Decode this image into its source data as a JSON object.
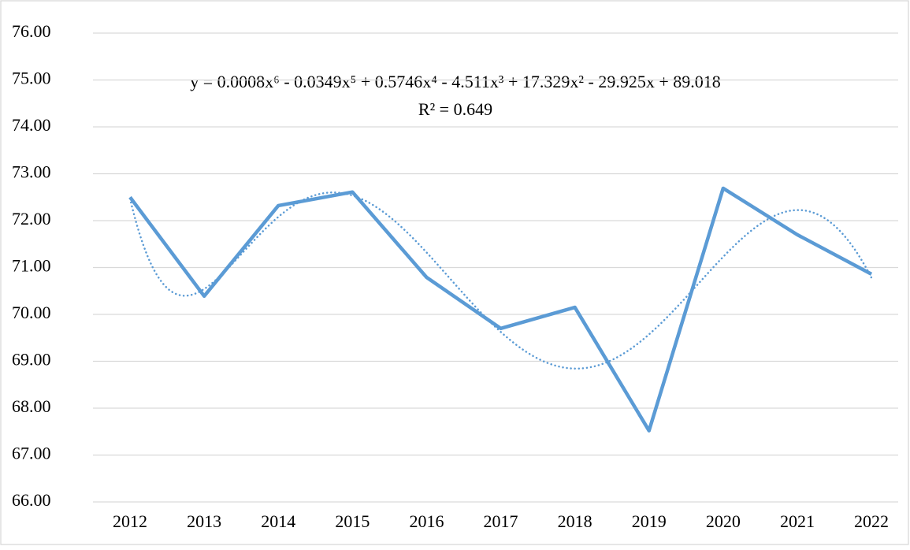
{
  "chart_data": {
    "type": "line",
    "categories": [
      "2012",
      "2013",
      "2014",
      "2015",
      "2016",
      "2017",
      "2018",
      "2019",
      "2020",
      "2021",
      "2022"
    ],
    "values": [
      72.5,
      70.39,
      72.32,
      72.61,
      70.79,
      69.7,
      70.15,
      67.52,
      72.69,
      71.7,
      70.86
    ],
    "color": "#5b9bd5",
    "ylim": [
      66,
      76
    ],
    "yticks": [
      {
        "value": 66,
        "label": "66.00"
      },
      {
        "value": 67,
        "label": "67.00"
      },
      {
        "value": 68,
        "label": "68.00"
      },
      {
        "value": 69,
        "label": "69.00"
      },
      {
        "value": 70,
        "label": "70.00"
      },
      {
        "value": 71,
        "label": "71.00"
      },
      {
        "value": 72,
        "label": "72.00"
      },
      {
        "value": 73,
        "label": "73.00"
      },
      {
        "value": 74,
        "label": "74.00"
      },
      {
        "value": 75,
        "label": "75.00"
      },
      {
        "value": 76,
        "label": "76.00"
      }
    ],
    "grid": true,
    "trendline": {
      "type": "polynomial",
      "order": 6,
      "style": "dotted",
      "equation": "y = 0.0008x⁶ - 0.0349x⁵ + 0.5746x⁴ - 4.511x³ + 17.329x² - 29.925x + 89.018",
      "r_squared": "R² = 0.649"
    }
  }
}
